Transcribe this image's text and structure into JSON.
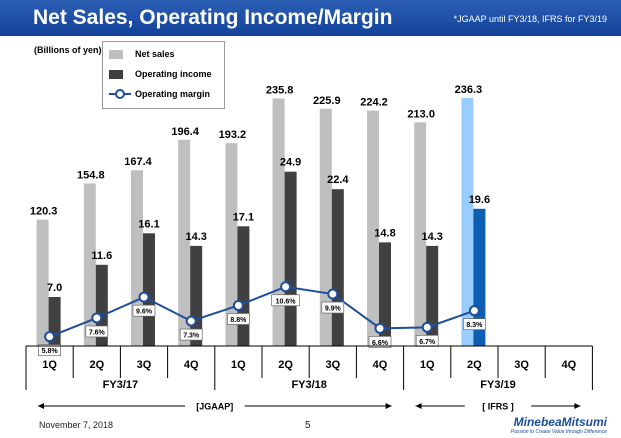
{
  "header": {
    "title": "Net Sales, Operating Income/Margin",
    "note": "*JGAAP until FY3/18, IFRS for FY3/19"
  },
  "unit_label": "(Billions of yen)",
  "legend": {
    "net_sales": "Net sales",
    "operating_income": "Operating income",
    "operating_margin": "Operating margin"
  },
  "colors": {
    "net_sales": "#bfbfbf",
    "net_sales_highlight": "#99ccff",
    "operating_income": "#404040",
    "operating_income_highlight": "#0d5fb3",
    "margin_line": "#1f4e9c",
    "header": "#1a4fa8"
  },
  "chart_data": {
    "type": "bar",
    "title": "Net Sales, Operating Income/Margin",
    "ylabel": "Billions of yen",
    "categories": [
      "1Q",
      "2Q",
      "3Q",
      "4Q",
      "1Q",
      "2Q",
      "3Q",
      "4Q",
      "1Q",
      "2Q",
      "3Q",
      "4Q"
    ],
    "groups": [
      {
        "label": "FY3/17",
        "span": 4
      },
      {
        "label": "FY3/18",
        "span": 4
      },
      {
        "label": "FY3/19",
        "span": 4
      }
    ],
    "series": [
      {
        "name": "Net sales",
        "values": [
          120.3,
          154.8,
          167.4,
          196.4,
          193.2,
          235.8,
          225.9,
          224.2,
          213.0,
          236.3,
          null,
          null
        ],
        "labels": [
          "120.3",
          "154.8",
          "167.4",
          "196.4",
          "193.2",
          "235.8",
          "225.9",
          "224.2",
          "213.0",
          "236.3",
          "",
          ""
        ]
      },
      {
        "name": "Operating income",
        "values": [
          7.0,
          11.6,
          16.1,
          14.3,
          17.1,
          24.9,
          22.4,
          14.8,
          14.3,
          19.6,
          null,
          null
        ],
        "labels": [
          "7.0",
          "11.6",
          "16.1",
          "14.3",
          "17.1",
          "24.9",
          "22.4",
          "14.8",
          "14.3",
          "19.6",
          "",
          ""
        ]
      },
      {
        "name": "Operating margin",
        "values": [
          5.8,
          7.6,
          9.6,
          7.3,
          8.8,
          10.6,
          9.9,
          6.6,
          6.7,
          8.3,
          null,
          null
        ],
        "labels": [
          "5.8%",
          "7.6%",
          "9.6%",
          "7.3%",
          "8.8%",
          "10.6%",
          "9.9%",
          "6.6%",
          "6.7%",
          "8.3%",
          "",
          ""
        ]
      }
    ],
    "highlight_index": 9,
    "standards": [
      {
        "label": "[JGAAP]",
        "from": 0,
        "to": 7
      },
      {
        "label": "[ IFRS ]",
        "from": 8,
        "to": 11
      }
    ]
  },
  "footer": {
    "date": "November 7, 2018",
    "page": "5",
    "logo": "MinebeaMitsumi",
    "tagline": "Passion to Create Value through Difference"
  }
}
